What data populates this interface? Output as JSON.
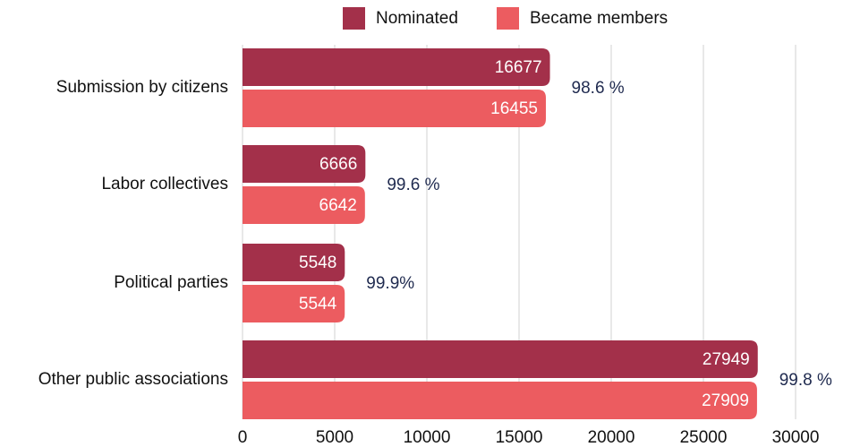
{
  "chart_data": {
    "type": "barh",
    "categories": [
      "Submission by citizens",
      "Labor collectives",
      "Political parties",
      "Other public associations"
    ],
    "series": [
      {
        "name": "Nominated",
        "color": "#a3304a",
        "values": [
          16677,
          6666,
          5548,
          27949
        ]
      },
      {
        "name": "Became members",
        "color": "#ec5c60",
        "values": [
          16455,
          6642,
          5544,
          27909
        ]
      }
    ],
    "annotations": [
      "98.6 %",
      "99.6 %",
      "99.9%",
      "99.8 %"
    ],
    "xlim": [
      0,
      30000
    ],
    "xticks": [
      0,
      5000,
      10000,
      15000,
      20000,
      25000,
      30000
    ],
    "grid": true,
    "legend": "top"
  }
}
